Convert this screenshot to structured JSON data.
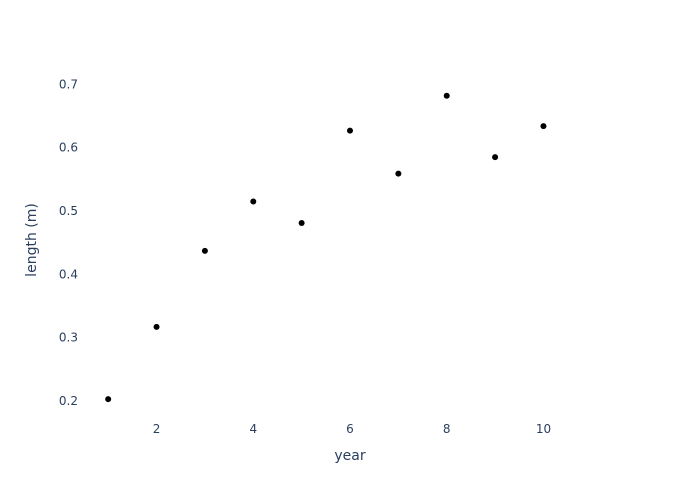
{
  "chart_data": {
    "type": "scatter",
    "title": "",
    "xlabel": "year",
    "ylabel": "length (m)",
    "xlim": [
      0.5,
      11.5
    ],
    "ylim": [
      0.17,
      0.77
    ],
    "x_ticks": [
      2,
      4,
      6,
      8,
      10
    ],
    "y_ticks": [
      0.2,
      0.3,
      0.4,
      0.5,
      0.6,
      0.7
    ],
    "grid": false,
    "marker_color": "#000000",
    "text_color": "#2a3f5f",
    "series": [
      {
        "x": [
          1,
          2,
          3,
          4,
          5,
          6,
          7,
          8,
          9,
          10
        ],
        "y": [
          0.203,
          0.317,
          0.437,
          0.515,
          0.481,
          0.627,
          0.559,
          0.682,
          0.585,
          0.634
        ]
      }
    ]
  }
}
